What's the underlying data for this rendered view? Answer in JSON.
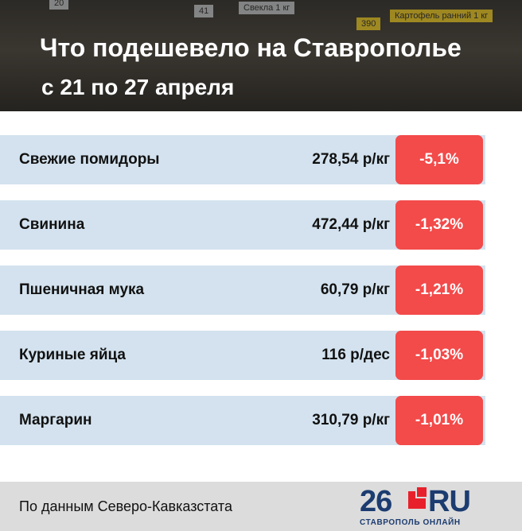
{
  "header": {
    "title": "Что подешевело на Ставрополье",
    "subtitle": "с 21 по 27 апреля",
    "photo_tags": [
      "20",
      "41",
      "Свекла 1 кг",
      "390",
      "Картофель ранний 1 кг"
    ]
  },
  "table": {
    "rows": [
      [
        "Свежие помидоры",
        "278,54 р/кг",
        "-5,1%"
      ],
      [
        "Свинина",
        "472,44 р/кг",
        "-1,32%"
      ],
      [
        "Пшеничная мука",
        "60,79 р/кг",
        "-1,21%"
      ],
      [
        "Куриные яйца",
        "116 р/дес",
        "-1,03%"
      ],
      [
        "Маргарин",
        "310,79 р/кг",
        "-1,01%"
      ]
    ]
  },
  "footer": {
    "source": "По данным Северо-Кавказстата",
    "logo": {
      "number": "26",
      "domain": "RU",
      "tagline": "СТАВРОПОЛЬ ОНЛАЙН"
    }
  }
}
